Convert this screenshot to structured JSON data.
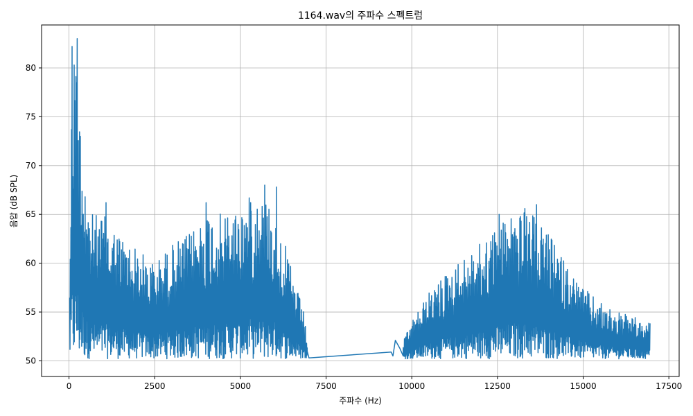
{
  "chart_data": {
    "type": "line",
    "title": "1164.wav의 주파수 스펙트럼",
    "xlabel": "주파수 (Hz)",
    "ylabel": "음압 (dB SPL)",
    "xlim": [
      -800,
      17800
    ],
    "ylim": [
      48.4,
      84.4
    ],
    "xticks": [
      0,
      2500,
      5000,
      7500,
      10000,
      12500,
      15000,
      17500
    ],
    "xtick_labels": [
      "0",
      "2500",
      "5000",
      "7500",
      "10000",
      "12500",
      "15000",
      "17500"
    ],
    "yticks": [
      50,
      55,
      60,
      65,
      70,
      75,
      80
    ],
    "ytick_labels": [
      "50",
      "55",
      "60",
      "65",
      "70",
      "75",
      "80"
    ],
    "grid": true,
    "line_color": "#1f77b4",
    "floor": 50.2,
    "envelope": [
      [
        20,
        60
      ],
      [
        60,
        73
      ],
      [
        100,
        82
      ],
      [
        160,
        80
      ],
      [
        200,
        81
      ],
      [
        240,
        83
      ],
      [
        300,
        76
      ],
      [
        400,
        72
      ],
      [
        500,
        67
      ],
      [
        700,
        65
      ],
      [
        1000,
        65
      ],
      [
        1500,
        63
      ],
      [
        2000,
        61.5
      ],
      [
        2500,
        60
      ],
      [
        3000,
        62
      ],
      [
        3500,
        63
      ],
      [
        4000,
        65.5
      ],
      [
        4500,
        65
      ],
      [
        5000,
        66
      ],
      [
        5500,
        67.5
      ],
      [
        6000,
        66
      ],
      [
        6300,
        62
      ],
      [
        6600,
        58
      ],
      [
        6850,
        55
      ],
      [
        6950,
        52
      ]
    ],
    "peaks": [
      [
        90,
        82.2
      ],
      [
        150,
        80.3
      ],
      [
        240,
        83.0
      ],
      [
        210,
        78.5
      ],
      [
        330,
        73.0
      ],
      [
        470,
        66.8
      ],
      [
        1080,
        66.2
      ],
      [
        4000,
        66.2
      ],
      [
        5300,
        66.2
      ],
      [
        5710,
        68.0
      ],
      [
        6050,
        67.8
      ],
      [
        12550,
        65.0
      ],
      [
        13300,
        65.6
      ],
      [
        13640,
        66.0
      ]
    ],
    "bridge": [
      [
        6950,
        51.0
      ],
      [
        7000,
        50.3
      ],
      [
        9400,
        50.9
      ],
      [
        9450,
        50.5
      ],
      [
        9520,
        52.1
      ],
      [
        9650,
        51.3
      ],
      [
        9750,
        50.5
      ]
    ],
    "envelope2": [
      [
        9750,
        52
      ],
      [
        10000,
        54
      ],
      [
        10500,
        57
      ],
      [
        11000,
        59
      ],
      [
        11500,
        60.5
      ],
      [
        12000,
        62
      ],
      [
        12500,
        64
      ],
      [
        13000,
        65.5
      ],
      [
        13500,
        65
      ],
      [
        14000,
        63
      ],
      [
        14500,
        60
      ],
      [
        15000,
        57.5
      ],
      [
        15500,
        56
      ],
      [
        16000,
        55
      ],
      [
        16500,
        54.5
      ],
      [
        16800,
        53.5
      ],
      [
        16950,
        54
      ]
    ]
  }
}
